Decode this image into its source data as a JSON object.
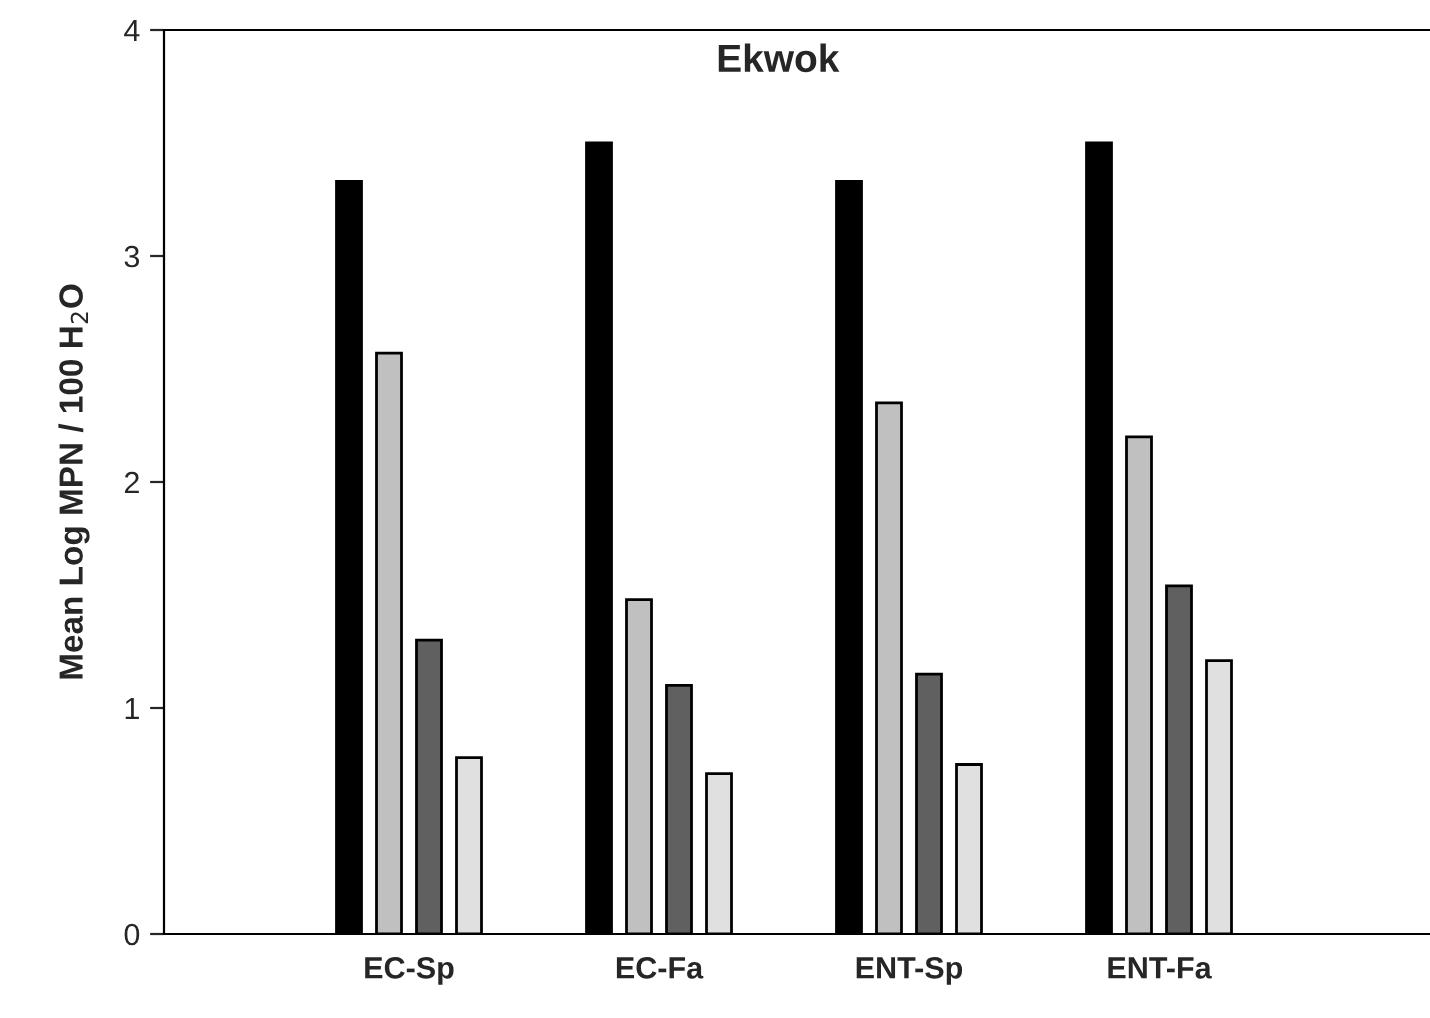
{
  "chart_data": {
    "type": "bar",
    "title": "Ekwok",
    "ylabel": "Mean Log MPN / 100 H$_{2}$O",
    "categories": [
      "EC-Sp",
      "EC-Fa",
      "ENT-Sp",
      "ENT-Fa"
    ],
    "series": [
      {
        "color": "#000000",
        "values": [
          3.33,
          3.5,
          3.33,
          3.5
        ]
      },
      {
        "color": "#c0c0c0",
        "values": [
          2.57,
          1.48,
          2.35,
          2.2
        ]
      },
      {
        "color": "#606060",
        "values": [
          1.3,
          1.1,
          1.15,
          1.54
        ]
      },
      {
        "color": "#e0e0e0",
        "values": [
          0.78,
          0.71,
          0.75,
          1.21
        ]
      }
    ],
    "ylim": [
      0,
      4
    ],
    "yticks": [
      0,
      1,
      2,
      3,
      4
    ],
    "grid": false,
    "legend": false
  }
}
